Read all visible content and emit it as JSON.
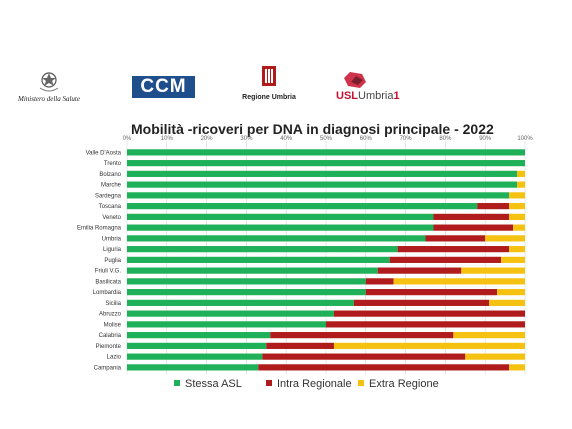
{
  "logos": {
    "ministero": "Ministero della Salute",
    "ccm": "CCM",
    "regione": "Regione Umbria",
    "usl_a": "USL",
    "usl_b": "Umbria",
    "usl_c": "1"
  },
  "colors": {
    "stessa_asl": "#1fb05a",
    "intra_regionale": "#b01c1c",
    "extra_regione": "#f5c211",
    "gridline": "#d9d9d9",
    "text": "#333333"
  },
  "chart_data": {
    "type": "bar",
    "orientation": "horizontal-stacked-100",
    "title": "Mobilità -ricoveri per DNA in diagnosi principale -  2022",
    "xlim": [
      0,
      100
    ],
    "x_ticks": [
      "0%",
      "10%",
      "20%",
      "30%",
      "40%",
      "50%",
      "60%",
      "70%",
      "80%",
      "90%",
      "100%"
    ],
    "grid": true,
    "legend_position": "bottom",
    "categories": [
      "Valle D'Aosta",
      "Trento",
      "Bolzano",
      "Marche",
      "Sardegna",
      "Toscana",
      "Veneto",
      "Emilia Romagna",
      "Umbria",
      "Liguria",
      "Puglia",
      "Friuli V.G.",
      "Basilicata",
      "Lombardia",
      "Sicilia",
      "Abruzzo",
      "Molise",
      "Calabria",
      "Piemonte",
      "Lazio",
      "Campania"
    ],
    "series": [
      {
        "name": "Stessa ASL",
        "color": "#1fb05a",
        "values": [
          100,
          100,
          98,
          98,
          96,
          88,
          77,
          77,
          75,
          68,
          66,
          63,
          60,
          60,
          57,
          52,
          50,
          36,
          35,
          34,
          33
        ]
      },
      {
        "name": "Intra Regionale",
        "color": "#b01c1c",
        "values": [
          0,
          0,
          0,
          0,
          0,
          8,
          19,
          20,
          15,
          28,
          28,
          21,
          7,
          33,
          34,
          48,
          50,
          46,
          17,
          51,
          63
        ]
      },
      {
        "name": "Extra Regione",
        "color": "#f5c211",
        "values": [
          0,
          0,
          2,
          2,
          4,
          4,
          4,
          3,
          10,
          4,
          6,
          16,
          33,
          7,
          9,
          0,
          0,
          18,
          48,
          15,
          4
        ]
      }
    ]
  }
}
